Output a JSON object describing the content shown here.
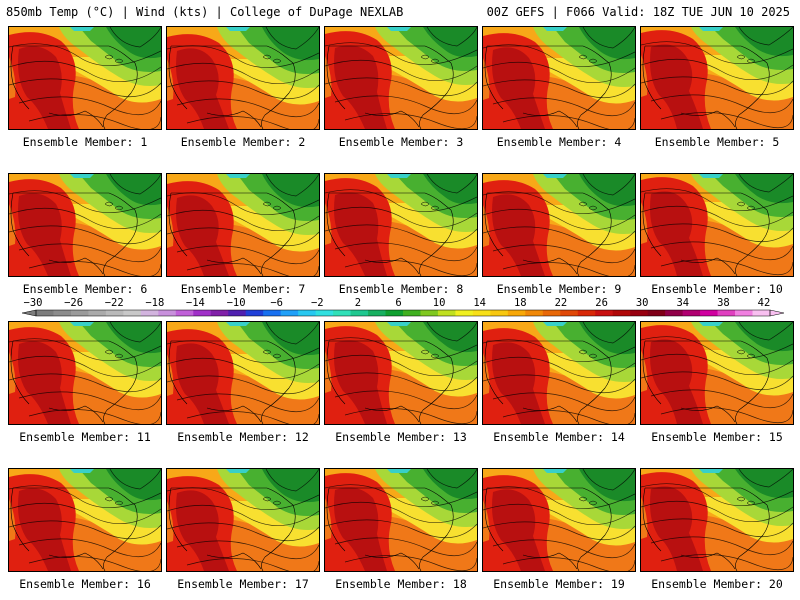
{
  "header": {
    "left": "850mb Temp (°C) | Wind (kts) | College of DuPage NEXLAB",
    "right": "00Z GEFS | F066 Valid: 18Z TUE JUN 10 2025"
  },
  "panel_label_prefix": "Ensemble Member: ",
  "members": [
    1,
    2,
    3,
    4,
    5,
    6,
    7,
    8,
    9,
    10,
    11,
    12,
    13,
    14,
    15,
    16,
    17,
    18,
    19,
    20
  ],
  "colorbar": {
    "tick_labels": [
      "−30",
      "−26",
      "−22",
      "−18",
      "−14",
      "−10",
      "−6",
      "−2",
      "2",
      "6",
      "10",
      "14",
      "18",
      "22",
      "26",
      "30",
      "34",
      "38",
      "42"
    ],
    "colors": [
      "#7d7d7d",
      "#8c8c8c",
      "#9b9b9b",
      "#aaaaaa",
      "#b9b9b9",
      "#c8c8c8",
      "#d2b4de",
      "#c890dc",
      "#c060d8",
      "#a030c8",
      "#8020a8",
      "#5020b0",
      "#2040d8",
      "#1870f0",
      "#20a0f8",
      "#28c8f0",
      "#30e0e0",
      "#30e0b8",
      "#20c890",
      "#18b060",
      "#10a030",
      "#40b020",
      "#80c820",
      "#c0e020",
      "#f0f020",
      "#f8e018",
      "#f8c810",
      "#f8a808",
      "#f08808",
      "#e86808",
      "#e04808",
      "#d82808",
      "#c81010",
      "#b00808",
      "#980010",
      "#800018",
      "#900048",
      "#b00070",
      "#d000a0",
      "#e040c0",
      "#f080e0",
      "#f8c0f0"
    ]
  },
  "colors": {
    "hot_core": "#b81010",
    "hot": "#e02010",
    "warm": "#f07818",
    "orange": "#f8a818",
    "yellow": "#f8e030",
    "light_green": "#a8d838",
    "green": "#48b030",
    "dark_green": "#1a8a28",
    "cyan": "#38d0c8",
    "contour": "#000000"
  }
}
